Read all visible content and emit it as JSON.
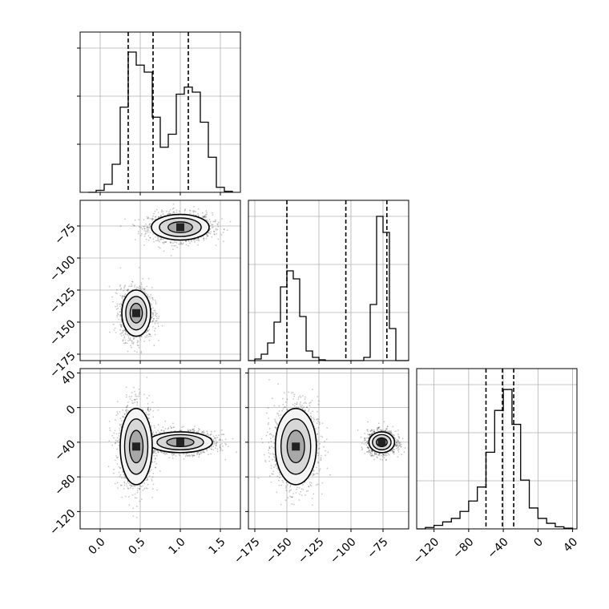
{
  "chart_data": {
    "type": "corner",
    "description_fields": [
      "p0",
      "p1",
      "p2"
    ],
    "parameters": [
      {
        "key": "p0",
        "range": [
          -0.25,
          1.75
        ],
        "ticks": [
          0.0,
          0.5,
          1.0,
          1.5
        ],
        "tick_labels": [
          "0.0",
          "0.5",
          "1.0",
          "1.5"
        ]
      },
      {
        "key": "p1",
        "range": [
          -180,
          -55
        ],
        "ticks": [
          -175,
          -150,
          -125,
          -100,
          -75
        ],
        "tick_labels": [
          "−175",
          "−150",
          "−125",
          "−100",
          "−75"
        ]
      },
      {
        "key": "p2",
        "range": [
          -140,
          45
        ],
        "ticks": [
          -120,
          -80,
          -40,
          0,
          40
        ],
        "tick_labels": [
          "−120",
          "−80",
          "−40",
          "0",
          "40"
        ]
      }
    ],
    "grid": true,
    "histograms": [
      {
        "param": "p0",
        "bin_edges": [
          -0.15,
          -0.05,
          0.05,
          0.15,
          0.25,
          0.35,
          0.45,
          0.55,
          0.65,
          0.75,
          0.85,
          0.95,
          1.05,
          1.15,
          1.25,
          1.35,
          1.45,
          1.55,
          1.65
        ],
        "counts": [
          0,
          2,
          8,
          28,
          85,
          140,
          127,
          120,
          75,
          45,
          58,
          98,
          105,
          100,
          70,
          35,
          5,
          1
        ],
        "ymax": 160,
        "quantiles": [
          0.35,
          0.66,
          1.1
        ]
      },
      {
        "param": "p1",
        "bin_edges": [
          -180,
          -175,
          -170,
          -165,
          -160,
          -155,
          -150,
          -145,
          -140,
          -135,
          -130,
          -125,
          -120,
          -115,
          -110,
          -105,
          -100,
          -95,
          -90,
          -85,
          -80,
          -75,
          -70,
          -65,
          -60,
          -55
        ],
        "counts": [
          0,
          2,
          8,
          22,
          48,
          92,
          112,
          102,
          55,
          12,
          4,
          1,
          0,
          0,
          0,
          0,
          0,
          0,
          4,
          70,
          180,
          160,
          40,
          0,
          0
        ],
        "ymax": 200,
        "quantiles": [
          -150.0,
          -104.0,
          -72.0
        ]
      },
      {
        "param": "p2",
        "bin_edges": [
          -140,
          -130,
          -120,
          -110,
          -100,
          -90,
          -80,
          -70,
          -60,
          -50,
          -40,
          -30,
          -20,
          -10,
          0,
          10,
          20,
          30,
          40
        ],
        "counts": [
          0,
          2,
          5,
          10,
          15,
          25,
          40,
          60,
          110,
          170,
          200,
          150,
          70,
          30,
          15,
          8,
          3,
          1
        ],
        "ymax": 230,
        "quantiles": [
          -60.0,
          -41.0,
          -28.0
        ]
      }
    ],
    "joint_panels": [
      {
        "x": "p0",
        "y": "p1",
        "clusters": [
          {
            "mean": [
              1.0,
              -76
            ],
            "sd": [
              0.18,
              5
            ]
          },
          {
            "mean": [
              0.45,
              -143
            ],
            "sd": [
              0.09,
              9
            ]
          }
        ]
      },
      {
        "x": "p0",
        "y": "p2",
        "clusters": [
          {
            "mean": [
              1.0,
              -40
            ],
            "sd": [
              0.2,
              6
            ]
          },
          {
            "mean": [
              0.45,
              -45
            ],
            "sd": [
              0.1,
              22
            ]
          }
        ]
      },
      {
        "x": "p1",
        "y": "p2",
        "clusters": [
          {
            "mean": [
              -143,
              -45
            ],
            "sd": [
              8,
              22
            ]
          },
          {
            "mean": [
              -76,
              -40
            ],
            "sd": [
              5,
              6
            ]
          }
        ]
      }
    ]
  }
}
